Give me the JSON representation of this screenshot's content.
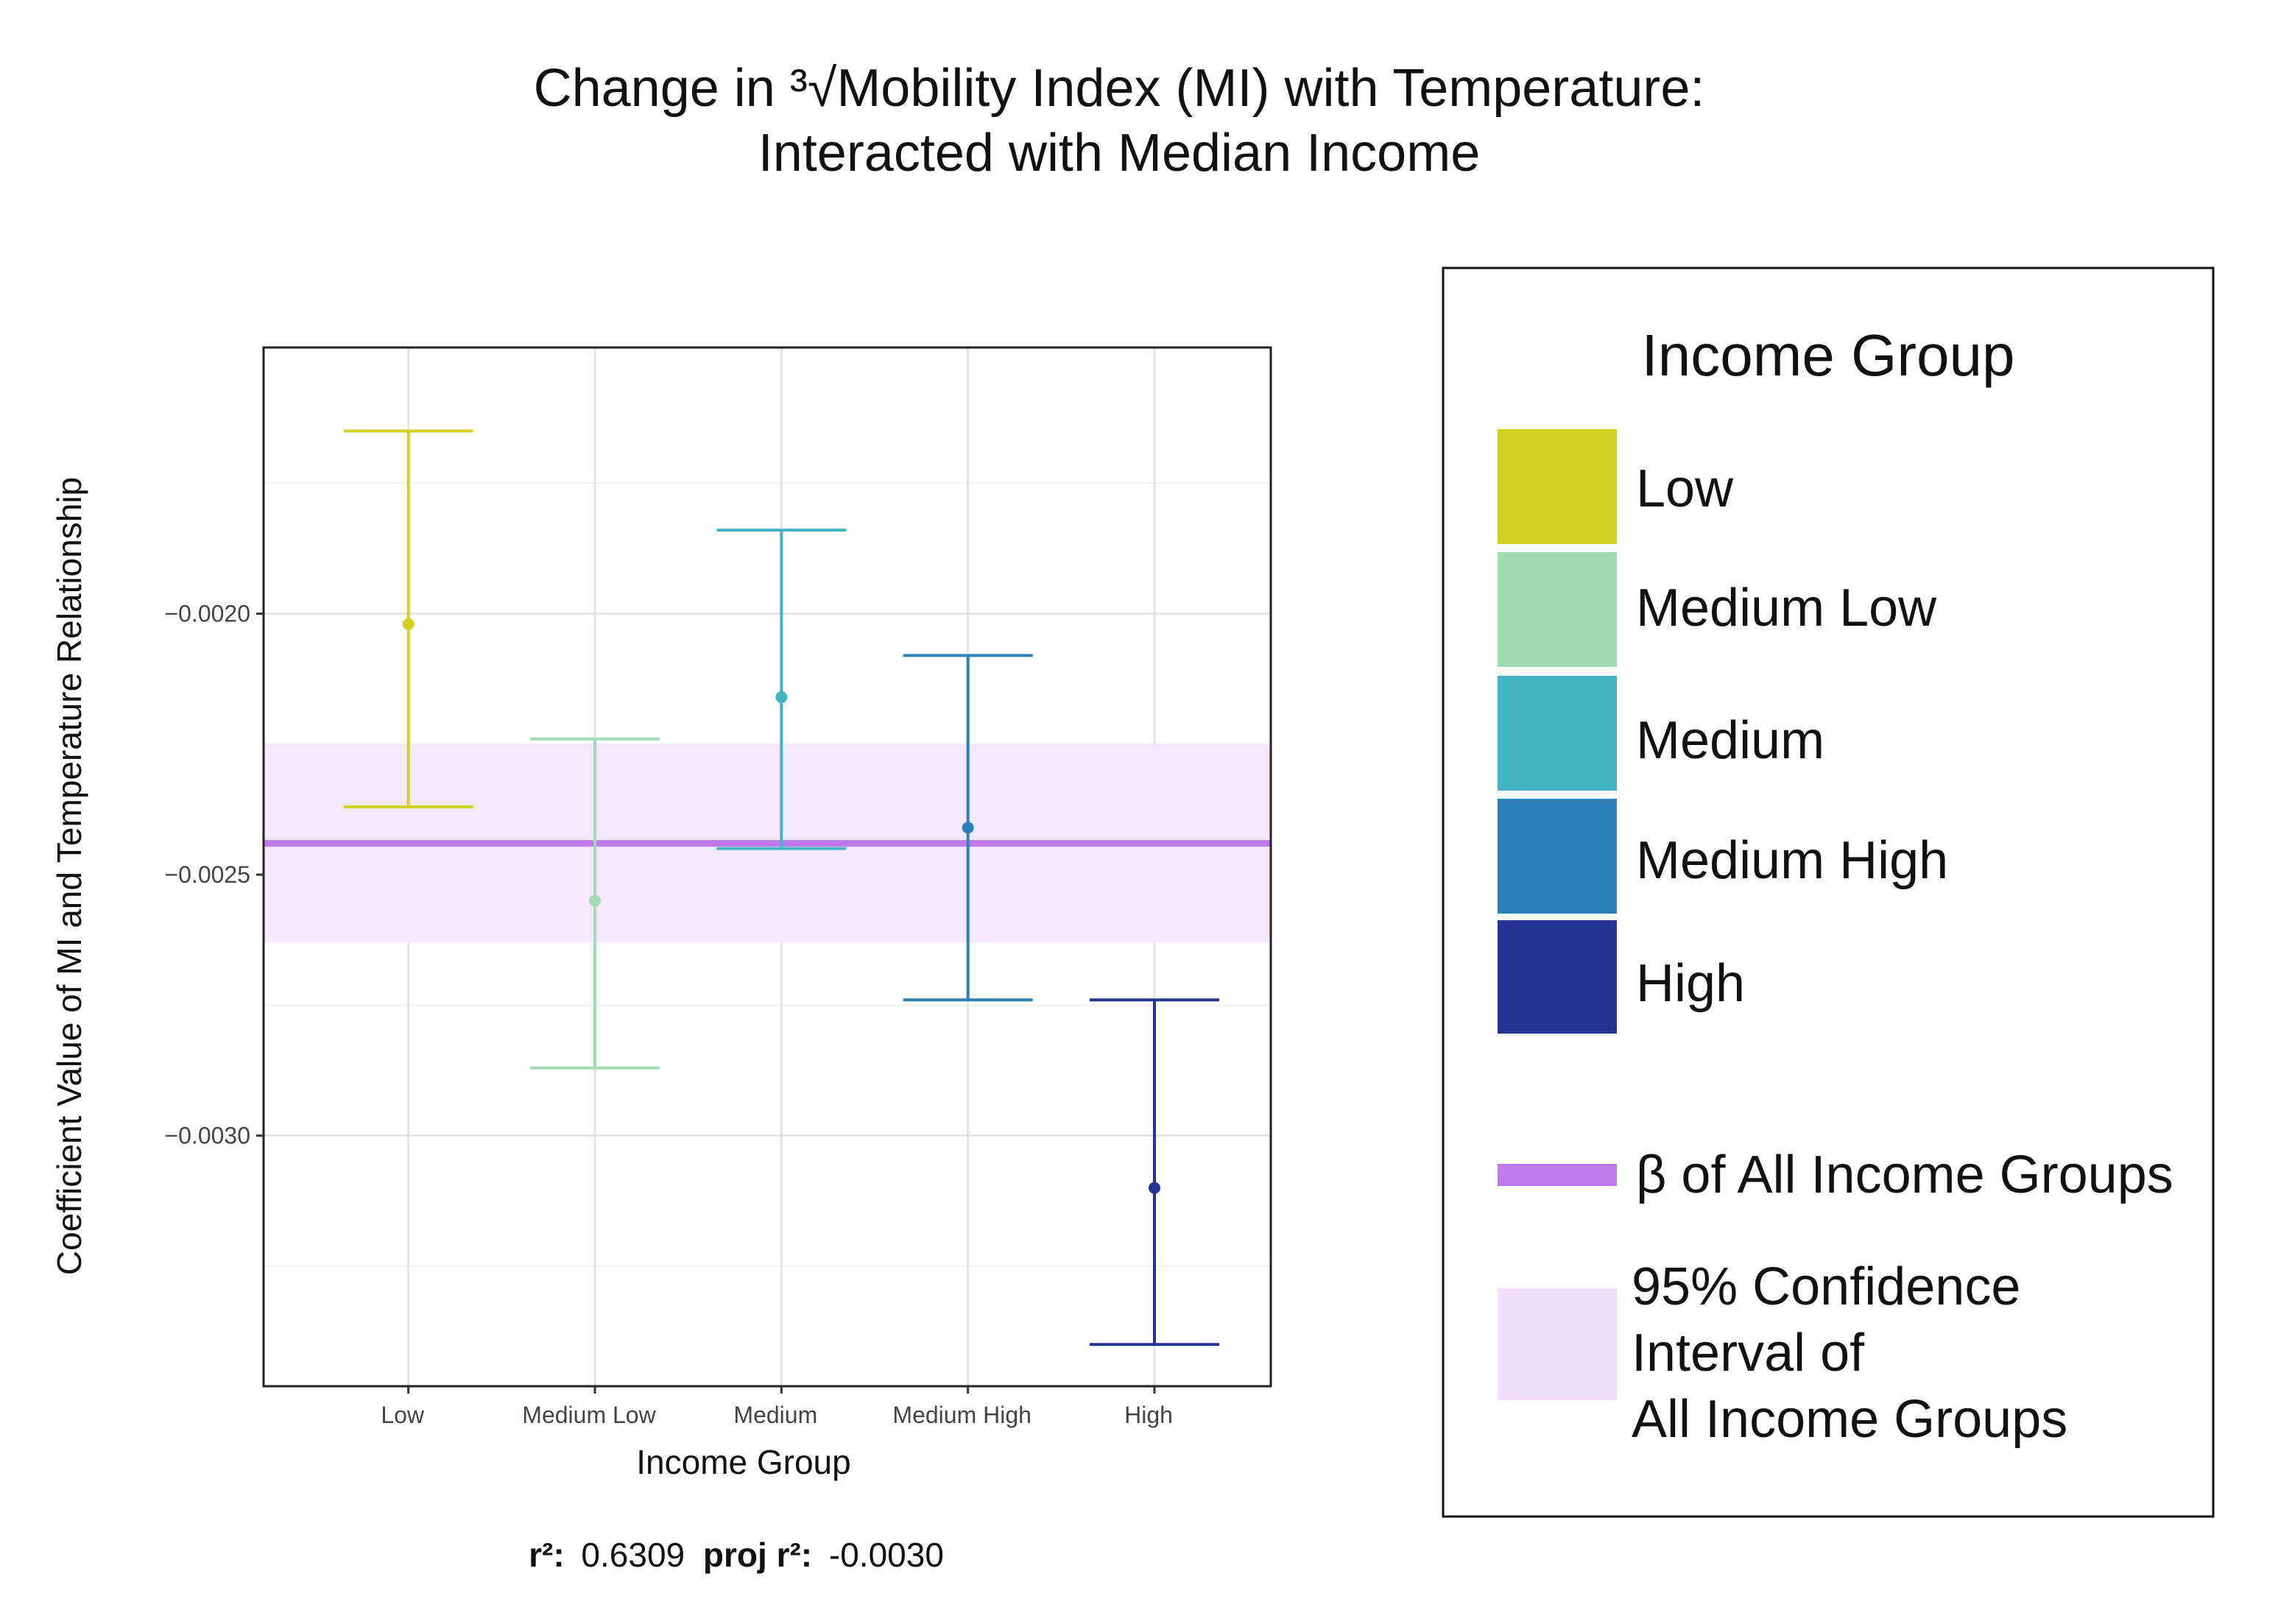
{
  "chart_data": {
    "type": "errorbar",
    "title_line1": "Change in ³√Mobility Index (MI) with Temperature:",
    "title_line2": "Interacted with Median Income",
    "xlabel": "Income Group",
    "ylabel": "Coefficient Value of MI and Temperature Relationship",
    "ylim": [
      -0.00348,
      -0.00149
    ],
    "yticks": [
      -0.002,
      -0.0025,
      -0.003
    ],
    "ytick_labels": [
      "−0.0020",
      "−0.0025",
      "−0.0030"
    ],
    "y_minor_gridlines": [
      -0.00175,
      -0.00225,
      -0.00275,
      -0.00325
    ],
    "grid": true,
    "legend_position": "right",
    "categories": [
      "Low",
      "Medium Low",
      "Medium",
      "Medium High",
      "High"
    ],
    "series": [
      {
        "name": "Low",
        "estimate": -0.00202,
        "lower": -0.00237,
        "upper": -0.00165,
        "color": "#d2d122"
      },
      {
        "name": "Medium Low",
        "estimate": -0.00255,
        "lower": -0.00287,
        "upper": -0.00224,
        "color": "#a2dab3"
      },
      {
        "name": "Medium",
        "estimate": -0.00216,
        "lower": -0.00245,
        "upper": -0.00184,
        "color": "#43b4c3"
      },
      {
        "name": "Medium High",
        "estimate": -0.00241,
        "lower": -0.00274,
        "upper": -0.00208,
        "color": "#2c82b8"
      },
      {
        "name": "High",
        "estimate": -0.0031,
        "lower": -0.0034,
        "upper": -0.00274,
        "color": "#253494"
      }
    ],
    "overall_beta": -0.00244,
    "overall_ci": [
      -0.00263,
      -0.00225
    ],
    "beta_color": "#c079ea",
    "ci_color": "#f3e9fc",
    "legend": {
      "title": "Income Group",
      "group_labels": [
        "Low",
        "Medium Low",
        "Medium",
        "Medium High",
        "High"
      ],
      "beta_label": "β of All Income Groups",
      "ci_label_lines": [
        "95% Confidence",
        "Interval of",
        "All Income Groups"
      ],
      "ci_swatch_color": "#efdff9"
    },
    "stats": {
      "r2_label": "r²:",
      "r2_value": "0.6309",
      "proj_label": "proj r²:",
      "proj_value": "-0.0030"
    }
  }
}
